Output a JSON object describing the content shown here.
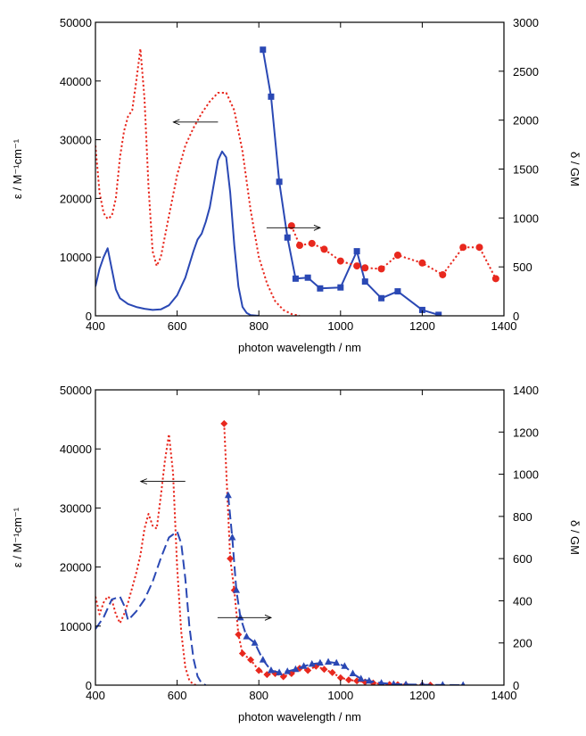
{
  "chart_data": [
    {
      "type": "line",
      "xlabel": "photon wavelength / nm",
      "ylabel_left": "ε / M⁻¹cm⁻¹",
      "ylabel_right": "δ / GM",
      "xlim": [
        400,
        1400
      ],
      "ylim_left": [
        0,
        50000
      ],
      "ylim_right": [
        0,
        3000
      ],
      "xticks": [
        400,
        600,
        800,
        1000,
        1200,
        1400
      ],
      "yticks_left": [
        0,
        10000,
        20000,
        30000,
        40000,
        50000
      ],
      "yticks_right": [
        0,
        500,
        1000,
        1500,
        2000,
        2500,
        3000
      ],
      "grid": false,
      "colors": {
        "red": "#e8281e",
        "blue": "#2a48b4"
      },
      "series": [
        {
          "axis": "left",
          "style": "dotted",
          "color": "#e8281e",
          "marker": "none",
          "x": [
            400,
            410,
            420,
            430,
            440,
            450,
            460,
            470,
            480,
            490,
            500,
            510,
            520,
            530,
            540,
            550,
            560,
            580,
            600,
            620,
            640,
            660,
            680,
            700,
            720,
            740,
            760,
            780,
            800,
            820,
            840,
            860,
            880,
            900
          ],
          "y": [
            29000,
            21000,
            17500,
            16500,
            17000,
            20000,
            27000,
            31500,
            34000,
            35000,
            40000,
            45500,
            37000,
            22000,
            11000,
            8500,
            10000,
            17000,
            24000,
            29000,
            32000,
            34500,
            36500,
            38000,
            38000,
            35000,
            28000,
            18000,
            10000,
            5500,
            2500,
            1000,
            300,
            0
          ]
        },
        {
          "axis": "left",
          "style": "solid",
          "color": "#2a48b4",
          "marker": "none",
          "x": [
            400,
            410,
            420,
            430,
            440,
            450,
            460,
            480,
            500,
            520,
            540,
            560,
            580,
            600,
            620,
            640,
            650,
            660,
            670,
            680,
            690,
            700,
            710,
            720,
            730,
            740,
            750,
            760,
            770,
            780,
            800
          ],
          "y": [
            5000,
            8000,
            10000,
            11500,
            8000,
            4500,
            3000,
            2000,
            1500,
            1200,
            1000,
            1100,
            1800,
            3500,
            6500,
            11000,
            13000,
            14000,
            16000,
            18500,
            22500,
            26500,
            28000,
            27000,
            21000,
            12000,
            5000,
            1500,
            500,
            100,
            0
          ]
        },
        {
          "axis": "right",
          "style": "solid",
          "color": "#2a48b4",
          "marker": "square",
          "x": [
            810,
            830,
            850,
            870,
            890,
            920,
            950,
            1000,
            1040,
            1060,
            1100,
            1140,
            1200,
            1240
          ],
          "y": [
            2720,
            2240,
            1370,
            800,
            380,
            390,
            280,
            290,
            660,
            350,
            180,
            250,
            60,
            10
          ]
        },
        {
          "axis": "right",
          "style": "dotted",
          "color": "#e8281e",
          "marker": "circle",
          "x": [
            880,
            900,
            930,
            960,
            1000,
            1040,
            1060,
            1100,
            1140,
            1200,
            1250,
            1300,
            1340,
            1380
          ],
          "y": [
            920,
            720,
            740,
            680,
            560,
            510,
            490,
            480,
            620,
            540,
            420,
            700,
            700,
            380
          ]
        }
      ],
      "annotations": [
        {
          "text": "←",
          "x": 700,
          "y_left": 33000
        },
        {
          "text": "→",
          "x": 950,
          "y_right": 900
        }
      ]
    },
    {
      "type": "line",
      "xlabel": "photon wavelength / nm",
      "ylabel_left": "ε / M⁻¹cm⁻¹",
      "ylabel_right": "δ / GM",
      "xlim": [
        400,
        1400
      ],
      "ylim_left": [
        0,
        50000
      ],
      "ylim_right": [
        0,
        1400
      ],
      "xticks": [
        400,
        600,
        800,
        1000,
        1200,
        1400
      ],
      "yticks_left": [
        0,
        10000,
        20000,
        30000,
        40000,
        50000
      ],
      "yticks_right": [
        0,
        200,
        400,
        600,
        800,
        1000,
        1200,
        1400
      ],
      "grid": false,
      "colors": {
        "red": "#e8281e",
        "blue": "#2a48b4"
      },
      "series": [
        {
          "axis": "left",
          "style": "dotted",
          "color": "#e8281e",
          "marker": "none",
          "x": [
            400,
            410,
            420,
            430,
            440,
            450,
            460,
            470,
            480,
            490,
            500,
            510,
            520,
            530,
            540,
            550,
            560,
            570,
            580,
            590,
            600,
            610,
            620,
            630,
            640,
            650
          ],
          "y": [
            15000,
            12000,
            14000,
            15000,
            14500,
            12000,
            10500,
            12000,
            14000,
            16500,
            19000,
            22000,
            26500,
            29000,
            27000,
            26500,
            32000,
            38000,
            42500,
            36000,
            20000,
            9000,
            3000,
            800,
            100,
            0
          ]
        },
        {
          "axis": "left",
          "style": "dashed",
          "color": "#2a48b4",
          "marker": "none",
          "x": [
            400,
            420,
            440,
            460,
            470,
            480,
            500,
            520,
            540,
            560,
            580,
            600,
            610,
            620,
            630,
            640,
            650,
            660,
            670
          ],
          "y": [
            9500,
            11500,
            14500,
            15000,
            13500,
            11000,
            12500,
            14500,
            17500,
            21500,
            25000,
            26000,
            24000,
            18000,
            10000,
            4500,
            1500,
            300,
            0
          ]
        },
        {
          "axis": "right",
          "style": "dotted",
          "color": "#e8281e",
          "marker": "diamond",
          "x": [
            715,
            730,
            740,
            750,
            760,
            780,
            800,
            820,
            840,
            860,
            880,
            900,
            920,
            940,
            960,
            980,
            1000,
            1020,
            1040,
            1060,
            1080,
            1100,
            1120,
            1140,
            1160,
            1200,
            1220
          ],
          "y": [
            1240,
            600,
            450,
            240,
            150,
            120,
            70,
            50,
            55,
            40,
            55,
            80,
            70,
            90,
            75,
            60,
            35,
            25,
            20,
            15,
            10,
            5,
            3,
            2,
            1,
            0,
            0
          ]
        },
        {
          "axis": "right",
          "style": "dashed",
          "color": "#2a48b4",
          "marker": "triangle",
          "x": [
            725,
            735,
            745,
            755,
            770,
            790,
            810,
            830,
            850,
            870,
            890,
            910,
            930,
            950,
            970,
            990,
            1010,
            1030,
            1050,
            1070,
            1100,
            1130,
            1160,
            1200,
            1250,
            1300
          ],
          "y": [
            900,
            700,
            450,
            320,
            230,
            200,
            120,
            70,
            60,
            65,
            75,
            90,
            100,
            105,
            110,
            105,
            90,
            55,
            30,
            20,
            10,
            5,
            3,
            2,
            1,
            0
          ]
        }
      ],
      "annotations": [
        {
          "text": "←",
          "x": 620,
          "y_left": 34500
        },
        {
          "text": "→",
          "x": 830,
          "y_right": 320
        }
      ]
    }
  ]
}
